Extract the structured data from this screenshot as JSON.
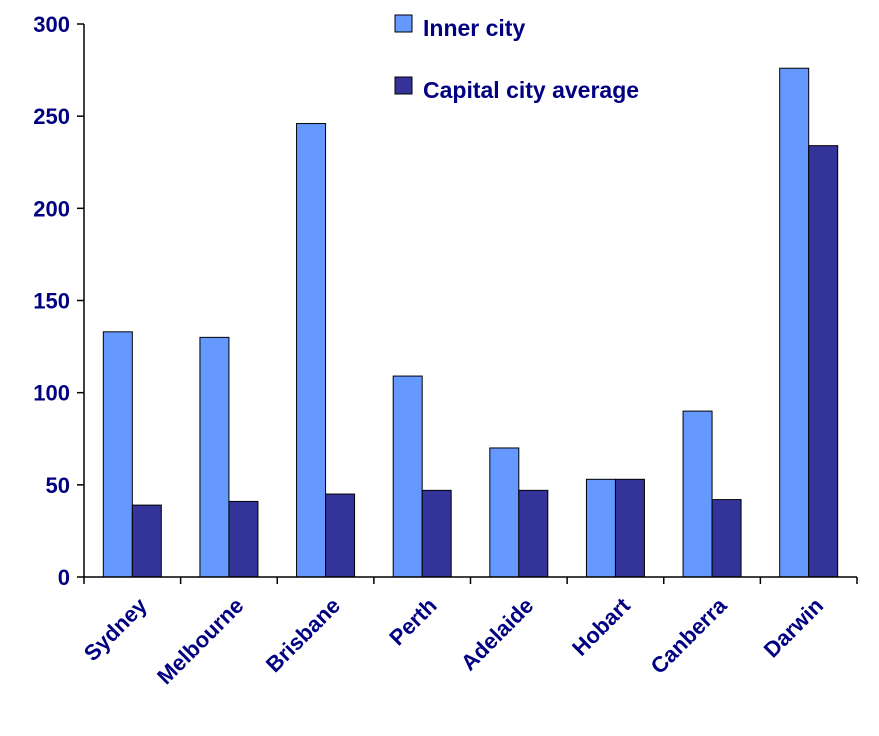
{
  "chart_data": {
    "type": "bar",
    "categories": [
      "Sydney",
      "Melbourne",
      "Brisbane",
      "Perth",
      "Adelaide",
      "Hobart",
      "Canberra",
      "Darwin"
    ],
    "series": [
      {
        "name": "Inner city",
        "color": "#6699ff",
        "values": [
          133,
          130,
          246,
          109,
          70,
          53,
          90,
          276
        ]
      },
      {
        "name": "Capital city average",
        "color": "#333399",
        "values": [
          39,
          41,
          45,
          47,
          47,
          53,
          42,
          234
        ]
      }
    ],
    "ylim": [
      0,
      300
    ],
    "yticks": [
      "0",
      "50",
      "100",
      "150",
      "200",
      "250",
      "300"
    ],
    "legend_position": "top-right",
    "grid": false,
    "title": "",
    "xlabel": "",
    "ylabel": ""
  }
}
